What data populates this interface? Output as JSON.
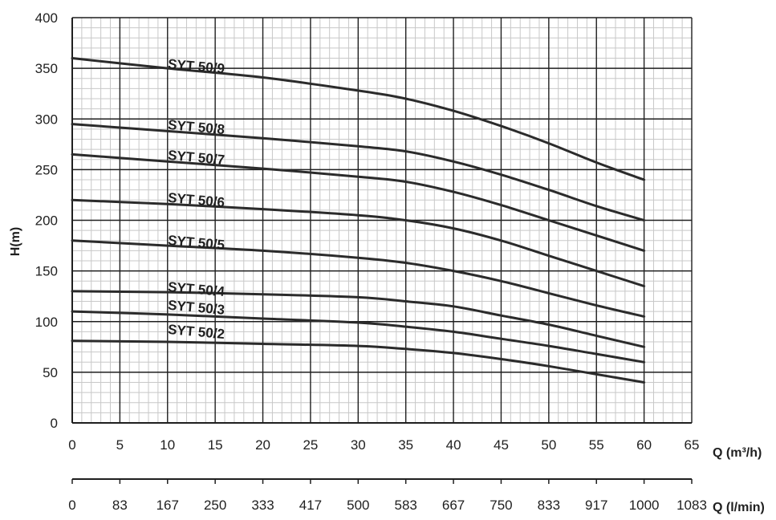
{
  "chart_data": {
    "type": "line",
    "title": "",
    "xlabel": "Q (m³/h)",
    "x2label": "Q (l/min)",
    "ylabel": "H(m)",
    "xlim": [
      0,
      65
    ],
    "ylim": [
      0,
      400
    ],
    "x_ticks": [
      "0",
      "5",
      "10",
      "15",
      "20",
      "25",
      "30",
      "35",
      "40",
      "45",
      "50",
      "55",
      "60",
      "65"
    ],
    "x2_ticks": [
      "0",
      "83",
      "167",
      "250",
      "333",
      "417",
      "500",
      "583",
      "667",
      "750",
      "833",
      "917",
      "1000",
      "1083"
    ],
    "y_ticks": [
      "0",
      "50",
      "100",
      "150",
      "200",
      "250",
      "300",
      "350",
      "400"
    ],
    "grid": true,
    "series": [
      {
        "name": "SYT 50/9",
        "x": [
          0,
          10,
          20,
          30,
          35,
          40,
          45,
          50,
          55,
          60
        ],
        "y": [
          360,
          350,
          341,
          328,
          320,
          308,
          293,
          276,
          257,
          240
        ]
      },
      {
        "name": "SYT 50/8",
        "x": [
          0,
          10,
          20,
          30,
          35,
          40,
          45,
          50,
          55,
          60
        ],
        "y": [
          295,
          288,
          281,
          273,
          268,
          258,
          245,
          230,
          214,
          200
        ]
      },
      {
        "name": "SYT 50/7",
        "x": [
          0,
          10,
          20,
          30,
          35,
          40,
          45,
          50,
          55,
          60
        ],
        "y": [
          265,
          258,
          251,
          243,
          238,
          228,
          215,
          200,
          185,
          170
        ]
      },
      {
        "name": "SYT 50/6",
        "x": [
          0,
          10,
          20,
          30,
          35,
          40,
          45,
          50,
          55,
          60
        ],
        "y": [
          220,
          216,
          211,
          205,
          200,
          192,
          180,
          165,
          150,
          135
        ]
      },
      {
        "name": "SYT 50/5",
        "x": [
          0,
          10,
          20,
          30,
          35,
          40,
          45,
          50,
          55,
          60
        ],
        "y": [
          180,
          175,
          170,
          163,
          158,
          150,
          140,
          128,
          116,
          105
        ]
      },
      {
        "name": "SYT 50/4",
        "x": [
          0,
          10,
          20,
          30,
          35,
          40,
          45,
          50,
          55,
          60
        ],
        "y": [
          130,
          129,
          127,
          124,
          120,
          115,
          106,
          97,
          86,
          75
        ]
      },
      {
        "name": "SYT 50/3",
        "x": [
          0,
          10,
          20,
          30,
          35,
          40,
          45,
          50,
          55,
          60
        ],
        "y": [
          110,
          107,
          103,
          99,
          95,
          90,
          83,
          76,
          68,
          60
        ]
      },
      {
        "name": "SYT 50/2",
        "x": [
          0,
          10,
          20,
          30,
          35,
          40,
          45,
          50,
          55,
          60
        ],
        "y": [
          81,
          80,
          78,
          76,
          73,
          69,
          63,
          56,
          48,
          40
        ]
      }
    ]
  },
  "labels": {
    "label_x": [
      10,
      10,
      10,
      10,
      10,
      10,
      10,
      10
    ],
    "label_y": [
      350,
      290,
      260,
      218,
      176,
      130,
      112,
      88
    ]
  },
  "colors": {
    "curve": "#2b2b2b",
    "grid_major": "#1f1f1f",
    "grid_minor": "#c8c8c8",
    "axis": "#1f1f1f",
    "text": "#1f1f1f"
  }
}
